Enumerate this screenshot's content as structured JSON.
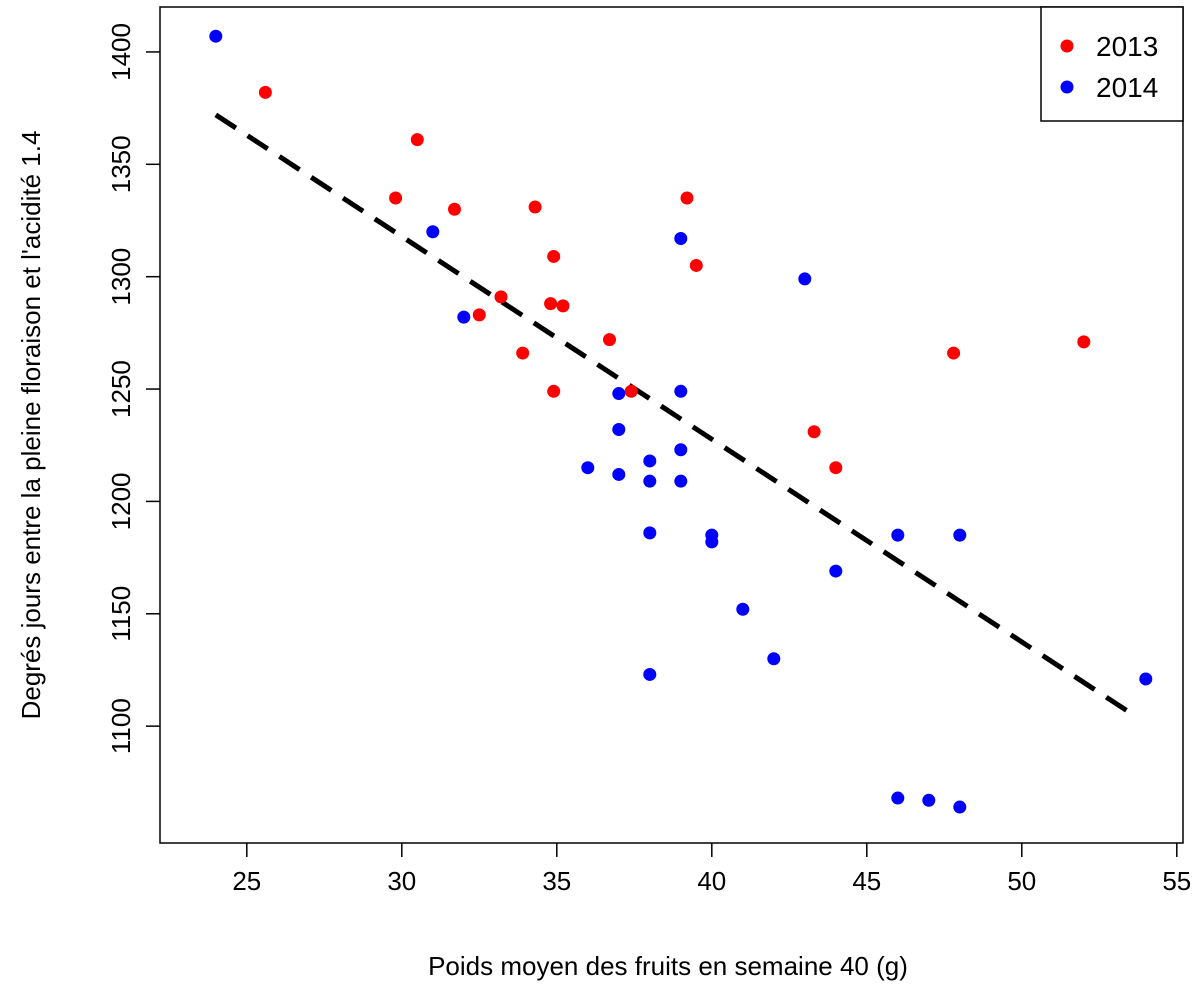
{
  "chart_data": {
    "type": "scatter",
    "title": "",
    "xlabel": "Poids moyen des fruits en semaine 40 (g)",
    "ylabel": "Degrés jours entre la pleine floraison et l'acidité 1.4",
    "xlim": [
      22.2,
      55.2
    ],
    "ylim": [
      1048,
      1420
    ],
    "x_ticks": [
      25,
      30,
      35,
      40,
      45,
      50,
      55
    ],
    "y_ticks": [
      1100,
      1150,
      1200,
      1250,
      1300,
      1350,
      1400
    ],
    "grid": false,
    "legend_position": "top-right",
    "series": [
      {
        "name": "2013",
        "color": "#ff0000",
        "points": [
          [
            25.6,
            1382
          ],
          [
            29.8,
            1335
          ],
          [
            30.5,
            1361
          ],
          [
            31.7,
            1330
          ],
          [
            32.5,
            1283
          ],
          [
            33.2,
            1291
          ],
          [
            33.9,
            1266
          ],
          [
            34.3,
            1331
          ],
          [
            34.8,
            1288
          ],
          [
            34.9,
            1309
          ],
          [
            34.9,
            1249
          ],
          [
            35.2,
            1287
          ],
          [
            36.7,
            1272
          ],
          [
            37.4,
            1249
          ],
          [
            39.2,
            1335
          ],
          [
            39.5,
            1305
          ],
          [
            43.3,
            1231
          ],
          [
            44.0,
            1215
          ],
          [
            47.8,
            1266
          ],
          [
            52.0,
            1271
          ]
        ]
      },
      {
        "name": "2014",
        "color": "#0000ff",
        "points": [
          [
            24.0,
            1407
          ],
          [
            31.0,
            1320
          ],
          [
            32.0,
            1282
          ],
          [
            36.0,
            1215
          ],
          [
            37.0,
            1248
          ],
          [
            37.0,
            1232
          ],
          [
            37.0,
            1212
          ],
          [
            38.0,
            1218
          ],
          [
            38.0,
            1209
          ],
          [
            38.0,
            1186
          ],
          [
            38.0,
            1123
          ],
          [
            39.0,
            1317
          ],
          [
            39.0,
            1249
          ],
          [
            39.0,
            1223
          ],
          [
            39.0,
            1209
          ],
          [
            40.0,
            1185
          ],
          [
            40.0,
            1182
          ],
          [
            41.0,
            1152
          ],
          [
            42.0,
            1130
          ],
          [
            43.0,
            1299
          ],
          [
            44.0,
            1169
          ],
          [
            46.0,
            1185
          ],
          [
            46.0,
            1068
          ],
          [
            47.0,
            1067
          ],
          [
            48.0,
            1185
          ],
          [
            48.0,
            1064
          ],
          [
            54.0,
            1121
          ]
        ]
      }
    ],
    "trendline": {
      "style": "dashed",
      "color": "#000000",
      "x": [
        24.0,
        53.6
      ],
      "y": [
        1372,
        1105
      ]
    }
  }
}
